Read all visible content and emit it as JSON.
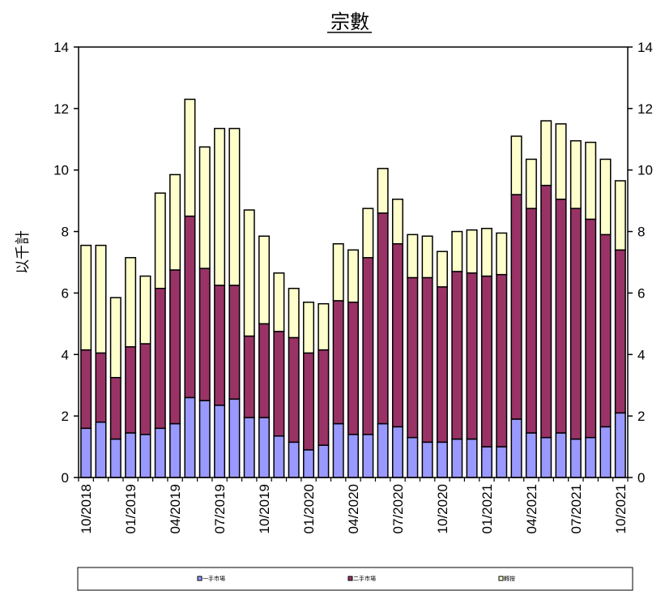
{
  "chart_data": {
    "type": "bar",
    "stacked": true,
    "title": "宗數",
    "ylabel": "以千計",
    "xlabel": "",
    "ylim": [
      0,
      14
    ],
    "yticks": [
      0,
      2,
      4,
      6,
      8,
      10,
      12,
      14
    ],
    "right_axis": true,
    "grid": false,
    "legend_position": "bottom",
    "categories": [
      "10/2018",
      "11/2018",
      "12/2018",
      "01/2019",
      "02/2019",
      "03/2019",
      "04/2019",
      "05/2019",
      "06/2019",
      "07/2019",
      "08/2019",
      "09/2019",
      "10/2019",
      "11/2019",
      "12/2019",
      "01/2020",
      "02/2020",
      "03/2020",
      "04/2020",
      "05/2020",
      "06/2020",
      "07/2020",
      "08/2020",
      "09/2020",
      "10/2020",
      "11/2020",
      "12/2020",
      "01/2021",
      "02/2021",
      "03/2021",
      "04/2021",
      "05/2021",
      "06/2021",
      "07/2021",
      "08/2021",
      "09/2021",
      "10/2021"
    ],
    "tick_labels": [
      "10/2018",
      "01/2019",
      "04/2019",
      "07/2019",
      "10/2019",
      "01/2020",
      "04/2020",
      "07/2020",
      "10/2020",
      "01/2021",
      "04/2021",
      "07/2021",
      "10/2021"
    ],
    "series": [
      {
        "name": "一手市場",
        "color": "#9999ff",
        "values": [
          1.6,
          1.8,
          1.25,
          1.45,
          1.4,
          1.6,
          1.75,
          2.6,
          2.5,
          2.35,
          2.55,
          1.95,
          1.95,
          1.35,
          1.15,
          0.9,
          1.05,
          1.75,
          1.4,
          1.4,
          1.75,
          1.65,
          1.3,
          1.15,
          1.15,
          1.25,
          1.25,
          1.0,
          1.0,
          1.9,
          1.45,
          1.3,
          1.45,
          1.25,
          1.3,
          1.65,
          2.1
        ]
      },
      {
        "name": "二手市場",
        "color": "#993366",
        "values": [
          2.55,
          2.25,
          2.0,
          2.8,
          2.95,
          4.55,
          5.0,
          5.9,
          4.3,
          3.9,
          3.7,
          2.65,
          3.05,
          3.4,
          3.4,
          3.15,
          3.1,
          4.0,
          4.3,
          5.75,
          6.85,
          5.95,
          5.2,
          5.35,
          5.05,
          5.45,
          5.4,
          5.55,
          5.6,
          7.3,
          7.3,
          8.2,
          7.6,
          7.5,
          7.1,
          6.25,
          5.3
        ]
      },
      {
        "name": "轉按",
        "color": "#ffffcc",
        "values": [
          3.4,
          3.5,
          2.6,
          2.9,
          2.2,
          3.1,
          3.1,
          3.8,
          3.95,
          5.1,
          5.1,
          4.1,
          2.85,
          1.9,
          1.6,
          1.65,
          1.5,
          1.85,
          1.7,
          1.6,
          1.45,
          1.45,
          1.4,
          1.35,
          1.15,
          1.3,
          1.4,
          1.55,
          1.35,
          1.9,
          1.6,
          2.1,
          2.45,
          2.2,
          2.5,
          2.45,
          2.25
        ]
      }
    ]
  }
}
